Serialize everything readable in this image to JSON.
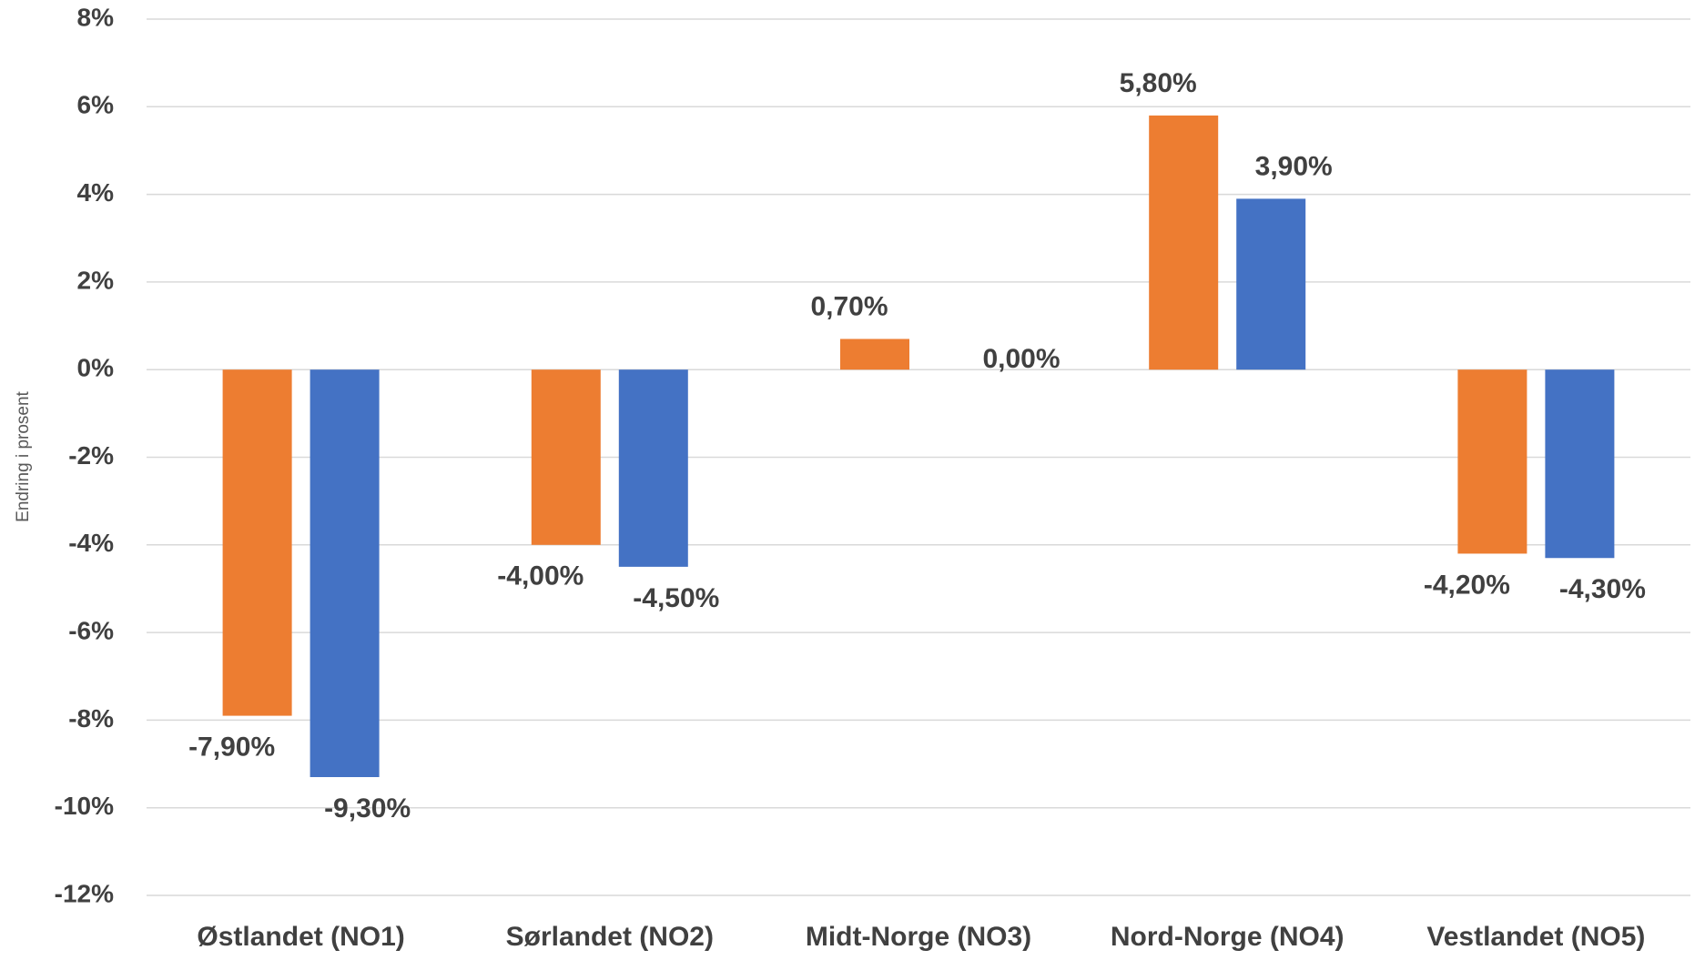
{
  "chart_data": {
    "type": "bar",
    "y_axis_label": "Endring i prosent",
    "categories": [
      "Østlandet (NO1)",
      "Sørlandet (NO2)",
      "Midt-Norge (NO3)",
      "Nord-Norge (NO4)",
      "Vestlandet (NO5)"
    ],
    "series": [
      {
        "color": "#ed7d31",
        "values": [
          -7.9,
          -4.0,
          0.7,
          5.8,
          -4.2
        ],
        "value_labels": [
          "-7,90%",
          "-4,00%",
          "0,70%",
          "5,80%",
          "-4,20%"
        ]
      },
      {
        "color": "#4472c4",
        "values": [
          -9.3,
          -4.5,
          0.0,
          3.9,
          -4.3
        ],
        "value_labels": [
          "-9,30%",
          "-4,50%",
          "0,00%",
          "3,90%",
          "-4,30%"
        ]
      }
    ],
    "ylim": [
      -12,
      8
    ],
    "yticks": [
      {
        "value": -12,
        "label": "-12%"
      },
      {
        "value": -10,
        "label": "-10%"
      },
      {
        "value": -8,
        "label": "-8%"
      },
      {
        "value": -6,
        "label": "-6%"
      },
      {
        "value": -4,
        "label": "-4%"
      },
      {
        "value": -2,
        "label": "-2%"
      },
      {
        "value": 0,
        "label": "0%"
      },
      {
        "value": 2,
        "label": "2%"
      },
      {
        "value": 4,
        "label": "4%"
      },
      {
        "value": 6,
        "label": "6%"
      },
      {
        "value": 8,
        "label": "8%"
      }
    ],
    "grid": true
  }
}
